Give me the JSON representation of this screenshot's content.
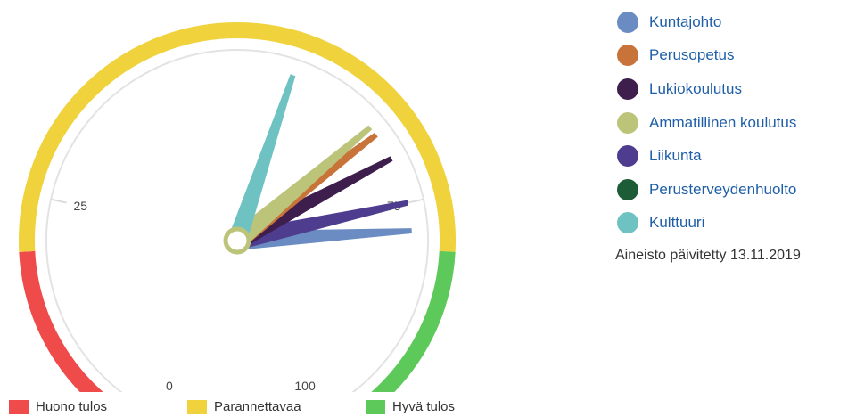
{
  "chart_data": {
    "type": "gauge",
    "axis": {
      "min": 0,
      "max": 100,
      "ticks": [
        "0",
        "25",
        "75",
        "100"
      ]
    },
    "bands": [
      {
        "name": "Huono tulos",
        "from": 0,
        "to": 20,
        "color": "#ef4b4b"
      },
      {
        "name": "Parannettavaa",
        "from": 20,
        "to": 80,
        "color": "#f0d23c"
      },
      {
        "name": "Hyvä tulos",
        "from": 80,
        "to": 100,
        "color": "#5ec95b"
      }
    ],
    "series": [
      {
        "name": "Kuntajohto",
        "value": 78,
        "color": "#6b8cc2"
      },
      {
        "name": "Perusopetus",
        "value": 67,
        "color": "#c8733a"
      },
      {
        "name": "Lukiokoulutus",
        "value": 70,
        "color": "#3e1e4d"
      },
      {
        "name": "Ammatillinen koulutus",
        "value": 66,
        "color": "#bcc47a"
      },
      {
        "name": "Liikunta",
        "value": 75,
        "color": "#4e3c8f"
      },
      {
        "name": "Perusterveydenhuolto",
        "value": null,
        "color": "#1c5c36"
      },
      {
        "name": "Kulttuuri",
        "value": 56,
        "color": "#6fc2c2"
      }
    ]
  },
  "updated_text": "Aineisto päivitetty 13.11.2019"
}
